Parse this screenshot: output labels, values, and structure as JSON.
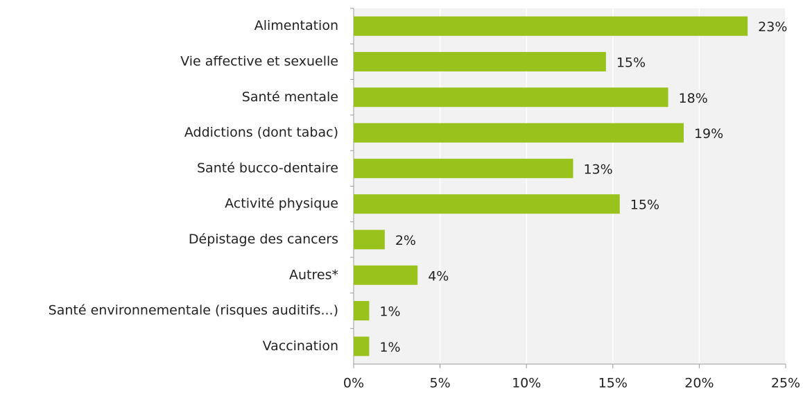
{
  "chart_data": {
    "type": "bar",
    "orientation": "horizontal",
    "categories": [
      "Alimentation",
      "Vie affective et sexuelle",
      "Santé mentale",
      "Addictions (dont tabac)",
      "Santé bucco-dentaire",
      "Activité physique",
      "Dépistage des cancers",
      "Autres*",
      "Santé environnementale (risques auditifs...)",
      "Vaccination"
    ],
    "values": [
      22.8,
      14.6,
      18.2,
      19.1,
      12.7,
      15.4,
      1.8,
      3.7,
      0.9,
      0.9
    ],
    "value_labels": [
      "23%",
      "15%",
      "18%",
      "19%",
      "13%",
      "15%",
      "2%",
      "4%",
      "1%",
      "1%"
    ],
    "color": "#99c31c",
    "xlim": [
      0,
      25
    ],
    "xticks": [
      {
        "value": 0,
        "label": "0%"
      },
      {
        "value": 5,
        "label": "5%"
      },
      {
        "value": 10,
        "label": "10%"
      },
      {
        "value": 15,
        "label": "15%"
      },
      {
        "value": 20,
        "label": "20%"
      },
      {
        "value": 25,
        "label": "25%"
      }
    ],
    "grid": true
  }
}
